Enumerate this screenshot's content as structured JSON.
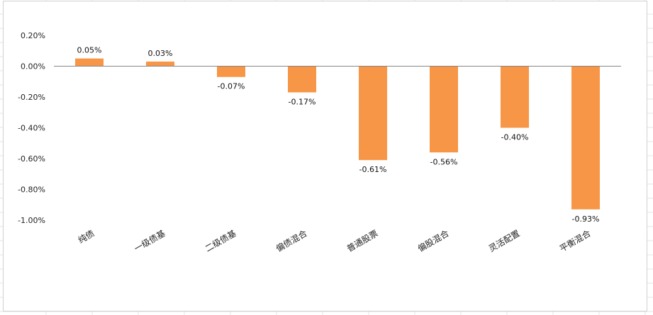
{
  "chart_data": {
    "type": "bar",
    "categories": [
      "纯债",
      "一级债基",
      "二级债基",
      "偏债混合",
      "普通股票",
      "偏股混合",
      "灵活配置",
      "平衡混合"
    ],
    "values": [
      0.05,
      0.03,
      -0.07,
      -0.17,
      -0.61,
      -0.56,
      -0.4,
      -0.93
    ],
    "value_labels": [
      "0.05%",
      "0.03%",
      "-0.07%",
      "-0.17%",
      "-0.61%",
      "-0.56%",
      "-0.40%",
      "-0.93%"
    ],
    "ylim": [
      -1.0,
      0.2
    ],
    "y_ticks": [
      0.2,
      0.0,
      -0.2,
      -0.4,
      -0.6,
      -0.8,
      -1.0
    ],
    "y_tick_labels": [
      "0.20%",
      "0.00%",
      "-0.20%",
      "-0.40%",
      "-0.60%",
      "-0.80%",
      "-1.00%"
    ],
    "grid": false,
    "legend": "none",
    "bar_color": "#F79646",
    "axis_color": "#868686",
    "title": "",
    "xlabel": "",
    "ylabel": ""
  }
}
